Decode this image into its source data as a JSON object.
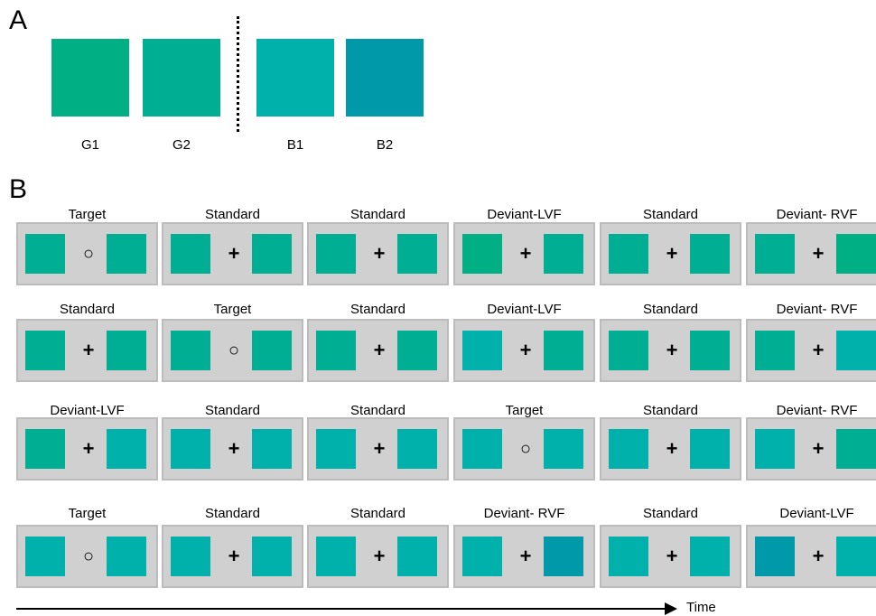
{
  "panel_a": {
    "letter": "A",
    "swatches": [
      {
        "label": "G1",
        "color": "#00b084"
      },
      {
        "label": "G2",
        "color": "#00ae93"
      },
      {
        "label": "B1",
        "color": "#00b0ab"
      },
      {
        "label": "B2",
        "color": "#0099aa"
      }
    ]
  },
  "panel_b": {
    "letter": "B",
    "fixation_cross": "+",
    "fixation_circle": "○",
    "rows": [
      {
        "trials": [
          {
            "label": "Target",
            "fix": "circle",
            "left": "#00ae93",
            "right": "#00ae93"
          },
          {
            "label": "Standard",
            "fix": "cross",
            "left": "#00ae93",
            "right": "#00ae93"
          },
          {
            "label": "Standard",
            "fix": "cross",
            "left": "#00ae93",
            "right": "#00ae93"
          },
          {
            "label": "Deviant-LVF",
            "fix": "cross",
            "left": "#00b084",
            "right": "#00ae93"
          },
          {
            "label": "Standard",
            "fix": "cross",
            "left": "#00ae93",
            "right": "#00ae93"
          },
          {
            "label": "Deviant- RVF",
            "fix": "cross",
            "left": "#00ae93",
            "right": "#00b084"
          }
        ]
      },
      {
        "trials": [
          {
            "label": "Standard",
            "fix": "cross",
            "left": "#00ae93",
            "right": "#00ae93"
          },
          {
            "label": "Target",
            "fix": "circle",
            "left": "#00ae93",
            "right": "#00ae93"
          },
          {
            "label": "Standard",
            "fix": "cross",
            "left": "#00ae93",
            "right": "#00ae93"
          },
          {
            "label": "Deviant-LVF",
            "fix": "cross",
            "left": "#00b0ab",
            "right": "#00ae93"
          },
          {
            "label": "Standard",
            "fix": "cross",
            "left": "#00ae93",
            "right": "#00ae93"
          },
          {
            "label": "Deviant- RVF",
            "fix": "cross",
            "left": "#00ae93",
            "right": "#00b0ab"
          }
        ]
      },
      {
        "trials": [
          {
            "label": "Deviant-LVF",
            "fix": "cross",
            "left": "#00ae93",
            "right": "#00b0ab"
          },
          {
            "label": "Standard",
            "fix": "cross",
            "left": "#00b0ab",
            "right": "#00b0ab"
          },
          {
            "label": "Standard",
            "fix": "cross",
            "left": "#00b0ab",
            "right": "#00b0ab"
          },
          {
            "label": "Target",
            "fix": "circle",
            "left": "#00b0ab",
            "right": "#00b0ab"
          },
          {
            "label": "Standard",
            "fix": "cross",
            "left": "#00b0ab",
            "right": "#00b0ab"
          },
          {
            "label": "Deviant- RVF",
            "fix": "cross",
            "left": "#00b0ab",
            "right": "#00ae93"
          }
        ]
      },
      {
        "trials": [
          {
            "label": "Target",
            "fix": "circle",
            "left": "#00b0ab",
            "right": "#00b0ab"
          },
          {
            "label": "Standard",
            "fix": "cross",
            "left": "#00b0ab",
            "right": "#00b0ab"
          },
          {
            "label": "Standard",
            "fix": "cross",
            "left": "#00b0ab",
            "right": "#00b0ab"
          },
          {
            "label": "Deviant- RVF",
            "fix": "cross",
            "left": "#00b0ab",
            "right": "#0099aa"
          },
          {
            "label": "Standard",
            "fix": "cross",
            "left": "#00b0ab",
            "right": "#00b0ab"
          },
          {
            "label": "Deviant-LVF",
            "fix": "cross",
            "left": "#0099aa",
            "right": "#00b0ab"
          }
        ]
      }
    ]
  },
  "time_axis": {
    "label": "Time"
  }
}
